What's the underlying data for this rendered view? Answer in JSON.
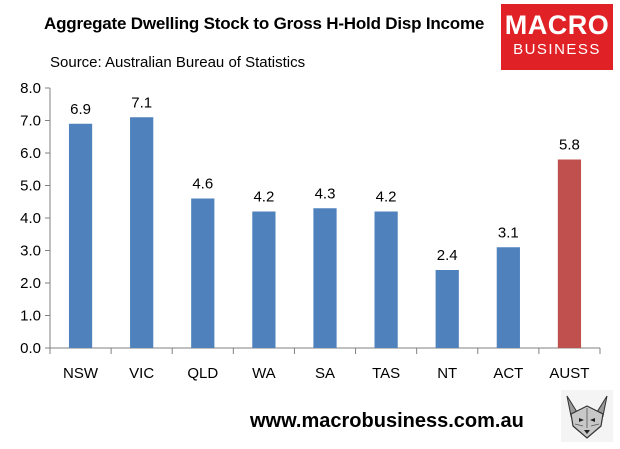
{
  "header": {
    "title": "Aggregate Dwelling Stock to Gross H-Hold Disp Income",
    "source": "Source: Australian Bureau of Statistics"
  },
  "logo": {
    "line1": "MACRO",
    "line2": "BUSINESS"
  },
  "footer": {
    "url": "www.macrobusiness.com.au",
    "mascot_icon": "wolf-icon"
  },
  "colors": {
    "bar": "#4f81bd",
    "highlight": "#c0504d",
    "axis": "#808080"
  },
  "chart_data": {
    "type": "bar",
    "title": "Aggregate Dwelling Stock to Gross H-Hold Disp Income",
    "xlabel": "",
    "ylabel": "",
    "categories": [
      "NSW",
      "VIC",
      "QLD",
      "WA",
      "SA",
      "TAS",
      "NT",
      "ACT",
      "AUST"
    ],
    "values": [
      6.9,
      7.1,
      4.6,
      4.2,
      4.3,
      4.2,
      2.4,
      3.1,
      5.8
    ],
    "value_labels": [
      "6.9",
      "7.1",
      "4.6",
      "4.2",
      "4.3",
      "4.2",
      "2.4",
      "3.1",
      "5.8"
    ],
    "highlight_category": "AUST",
    "ylim": [
      0,
      8
    ],
    "yticks": [
      "0.0",
      "1.0",
      "2.0",
      "3.0",
      "4.0",
      "5.0",
      "6.0",
      "7.0",
      "8.0"
    ],
    "grid": false,
    "legend": "none"
  }
}
